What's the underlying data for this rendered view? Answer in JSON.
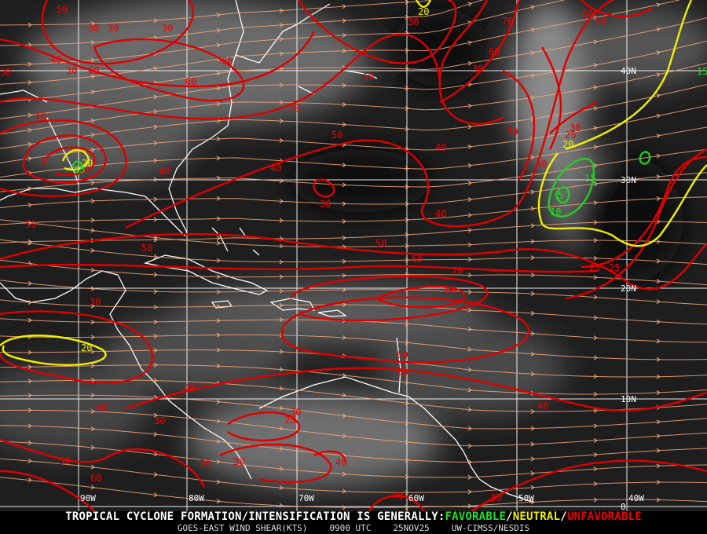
{
  "map": {
    "colors": {
      "background": "#1e1e1e",
      "streamline": "#f4a77a",
      "high_shear": "#e00000",
      "neutral": "#f0f000",
      "favorable": "#20d020",
      "coast": "#ffffff",
      "grid": "#ffffff"
    },
    "longitude_labels": [
      "90W",
      "80W",
      "70W",
      "60W",
      "50W",
      "40W"
    ],
    "latitude_labels": [
      "40N",
      "30N",
      "20N",
      "10N",
      "0"
    ],
    "contour_labels": [
      {
        "v": "50",
        "c": "red"
      },
      {
        "v": "30",
        "c": "red"
      },
      {
        "v": "30",
        "c": "red"
      },
      {
        "v": "30",
        "c": "red"
      },
      {
        "v": "40",
        "c": "red"
      },
      {
        "v": "30",
        "c": "red"
      },
      {
        "v": "30",
        "c": "red"
      },
      {
        "v": "60",
        "c": "red"
      },
      {
        "v": "60",
        "c": "red"
      },
      {
        "v": "70",
        "c": "red"
      },
      {
        "v": "60",
        "c": "red"
      },
      {
        "v": "40",
        "c": "red"
      },
      {
        "v": "50",
        "c": "red"
      },
      {
        "v": "20",
        "c": "yellow"
      },
      {
        "v": "15",
        "c": "green"
      },
      {
        "v": "40",
        "c": "red"
      },
      {
        "v": "40",
        "c": "red"
      },
      {
        "v": "30",
        "c": "red"
      },
      {
        "v": "50",
        "c": "red"
      },
      {
        "v": "50",
        "c": "red"
      },
      {
        "v": "50",
        "c": "red"
      },
      {
        "v": "60",
        "c": "red"
      },
      {
        "v": "70",
        "c": "red"
      },
      {
        "v": "60",
        "c": "red"
      },
      {
        "v": "30",
        "c": "red"
      },
      {
        "v": "20",
        "c": "yellow"
      },
      {
        "v": "60",
        "c": "red"
      },
      {
        "v": "50",
        "c": "red"
      },
      {
        "v": "40",
        "c": "red"
      },
      {
        "v": "40",
        "c": "red"
      },
      {
        "v": "30",
        "c": "red"
      },
      {
        "v": "30",
        "c": "red"
      },
      {
        "v": "25",
        "c": "red"
      },
      {
        "v": "40",
        "c": "red"
      },
      {
        "v": "50",
        "c": "red"
      },
      {
        "v": "60",
        "c": "red"
      },
      {
        "v": "40",
        "c": "red"
      },
      {
        "v": "50",
        "c": "red"
      },
      {
        "v": "30",
        "c": "red"
      },
      {
        "v": "40",
        "c": "red"
      },
      {
        "v": "30",
        "c": "red"
      },
      {
        "v": "30",
        "c": "red"
      },
      {
        "v": "25",
        "c": "red"
      },
      {
        "v": "25",
        "c": "red"
      },
      {
        "v": "40",
        "c": "red"
      },
      {
        "v": "70",
        "c": "red"
      },
      {
        "v": "40",
        "c": "red"
      },
      {
        "v": "30",
        "c": "red"
      },
      {
        "v": "25",
        "c": "red"
      },
      {
        "v": "20",
        "c": "yellow"
      },
      {
        "v": "15",
        "c": "green"
      },
      {
        "v": "10",
        "c": "green"
      },
      {
        "v": "5",
        "c": "green"
      },
      {
        "v": "15",
        "c": "green"
      },
      {
        "v": "20",
        "c": "yellow"
      },
      {
        "v": "30",
        "c": "red"
      },
      {
        "v": "70",
        "c": "red"
      },
      {
        "v": "60",
        "c": "red"
      },
      {
        "v": "50",
        "c": "red"
      },
      {
        "v": "60",
        "c": "red"
      },
      {
        "v": "40",
        "c": "red"
      },
      {
        "v": "30",
        "c": "red"
      }
    ]
  },
  "footer": {
    "headline_prefix": "TROPICAL CYCLONE FORMATION/INTENSIFICATION IS GENERALLY:",
    "favorable": "FAVORABLE",
    "slash1": "/",
    "neutral": "NEUTRAL",
    "slash2": "/",
    "unfavorable": "UNFAVORABLE",
    "product": "GOES-EAST WIND SHEAR(KTS)",
    "time": "0900 UTC",
    "date": "25NOV25",
    "source": "UW-CIMSS/NESDIS"
  }
}
